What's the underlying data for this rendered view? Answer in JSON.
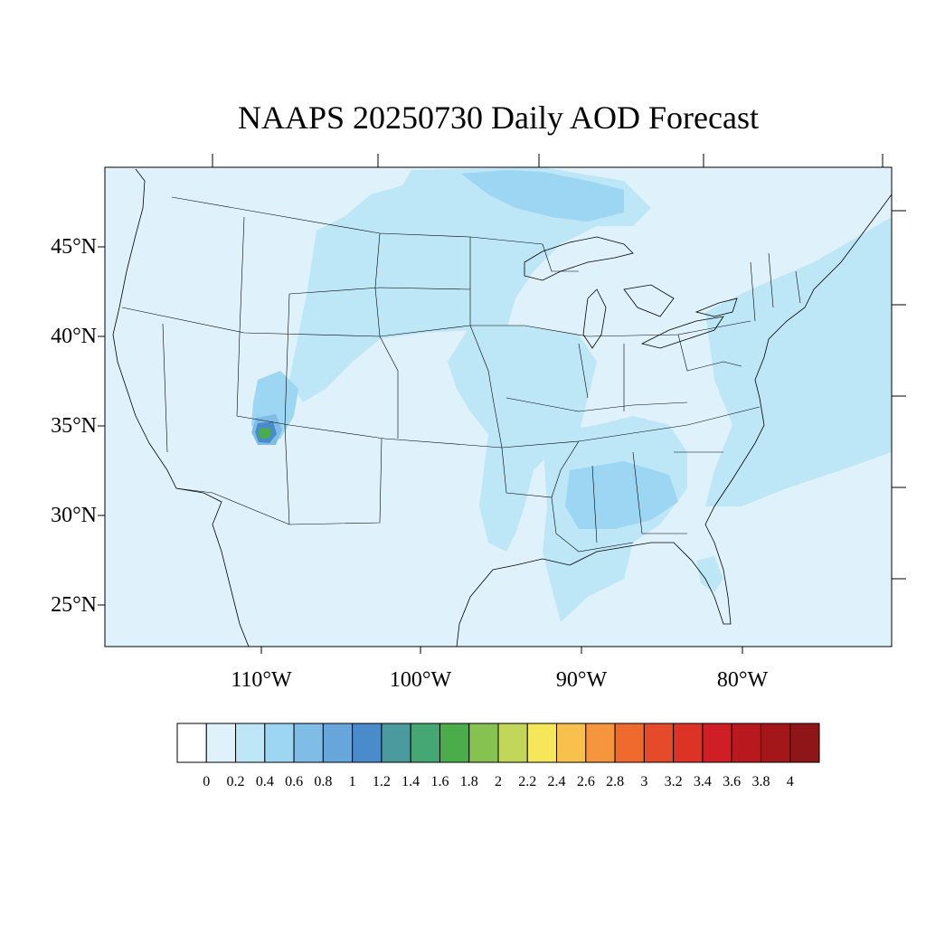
{
  "title": "NAAPS 20250730 Daily AOD Forecast",
  "lat_labels": [
    "45°N",
    "40°N",
    "35°N",
    "30°N",
    "25°N"
  ],
  "lon_labels": [
    "110°W",
    "100°W",
    "90°W",
    "80°W"
  ],
  "colorbar": {
    "labels": [
      "0",
      "0.2",
      "0.4",
      "0.6",
      "0.8",
      "1",
      "1.2",
      "1.4",
      "1.6",
      "1.8",
      "2",
      "2.2",
      "2.4",
      "2.6",
      "2.8",
      "3",
      "3.2",
      "3.4",
      "3.6",
      "3.8",
      "4"
    ],
    "colors": [
      "#ffffff",
      "#dff2fb",
      "#bde6f7",
      "#9dd6f3",
      "#80bde6",
      "#67a6db",
      "#4a8ccb",
      "#4a9a9e",
      "#45a774",
      "#4aad4a",
      "#86c24f",
      "#c2d65a",
      "#f6e75a",
      "#f8c04c",
      "#f5953e",
      "#f06a2e",
      "#e54b2b",
      "#dd3226",
      "#d01e27",
      "#b8191f",
      "#a3171b",
      "#8f1618"
    ]
  },
  "chart_data": {
    "type": "heatmap",
    "title": "NAAPS 20250730 Daily AOD Forecast",
    "variable": "AOD",
    "projection": "Lambert conformal",
    "extent": {
      "lon": [
        -120,
        -70
      ],
      "lat": [
        23,
        50
      ]
    },
    "lat_ticks": [
      45,
      40,
      35,
      30,
      25
    ],
    "lon_ticks": [
      -110,
      -100,
      -90,
      -80
    ],
    "levels": [
      0,
      0.2,
      0.4,
      0.6,
      0.8,
      1,
      1.2,
      1.4,
      1.6,
      1.8,
      2,
      2.2,
      2.4,
      2.6,
      2.8,
      3,
      3.2,
      3.4,
      3.6,
      3.8,
      4
    ],
    "background_aod_range": [
      0.2,
      0.4
    ],
    "features": [
      {
        "name": "plume",
        "lon": -106,
        "lat": 46,
        "aod_range": [
          0.4,
          0.6
        ]
      },
      {
        "name": "plume",
        "lon": -89,
        "lat": 48,
        "aod_range": [
          0.6,
          0.8
        ]
      },
      {
        "name": "plume",
        "lon": -93,
        "lat": 38,
        "aod_range": [
          0.4,
          0.6
        ]
      },
      {
        "name": "plume",
        "lon": -87,
        "lat": 32,
        "aod_range": [
          0.4,
          0.8
        ]
      },
      {
        "name": "plume",
        "lon": -74,
        "lat": 38,
        "aod_range": [
          0.4,
          0.6
        ]
      },
      {
        "name": "hotspot",
        "lon": -112,
        "lat": 35,
        "aod_range": [
          1.4,
          1.8
        ]
      }
    ]
  }
}
